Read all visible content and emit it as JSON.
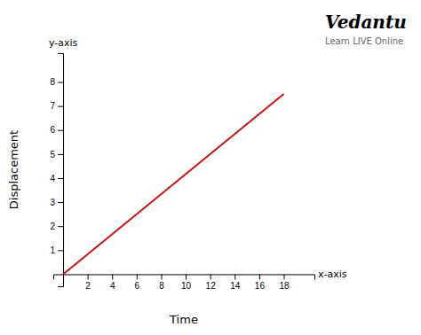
{
  "chart_data": {
    "type": "line",
    "x": [
      0,
      18
    ],
    "values": [
      0,
      7.5
    ],
    "color": "#cc1111",
    "xlim": [
      -0.8,
      20.5
    ],
    "ylim": [
      -0.5,
      9.2
    ],
    "xticks": [
      2,
      4,
      6,
      8,
      10,
      12,
      14,
      16,
      18
    ],
    "yticks": [
      1,
      2,
      3,
      4,
      5,
      6,
      7,
      8
    ],
    "xlabel": "Time",
    "ylabel": "Displacement",
    "annotations": [
      "x-axis",
      "y-axis",
      "Vedantu",
      "Learn LIVE Online"
    ]
  }
}
